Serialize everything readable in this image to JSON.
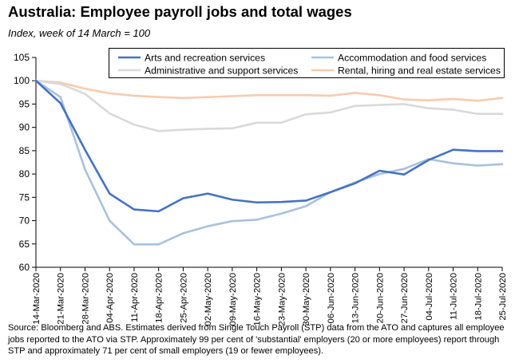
{
  "chart_data": {
    "type": "line",
    "title": "Australia:  Employee payroll jobs and total wages",
    "subtitle": "Index, week of 14 March = 100",
    "xlabel": "",
    "ylabel": "",
    "ylim": [
      60,
      105
    ],
    "yticks": [
      60,
      65,
      70,
      75,
      80,
      85,
      90,
      95,
      100,
      105
    ],
    "grid": false,
    "legend_position": "top-right",
    "categories": [
      "14-Mar-2020",
      "21-Mar-2020",
      "28-Mar-2020",
      "04-Apr-2020",
      "11-Apr-2020",
      "18-Apr-2020",
      "25-Apr-2020",
      "02-May-2020",
      "09-May-2020",
      "16-May-2020",
      "23-May-2020",
      "30-May-2020",
      "06-Jun-2020",
      "13-Jun-2020",
      "20-Jun-2020",
      "27-Jun-2020",
      "04-Jul-2020",
      "11-Jul-2020",
      "18-Jul-2020",
      "25-Jul-2020"
    ],
    "series": [
      {
        "name": "Arts and recreation services",
        "color": "#4472c4",
        "values": [
          100,
          95.2,
          85.2,
          75.8,
          72.4,
          72.0,
          74.8,
          75.8,
          74.5,
          73.9,
          74.0,
          74.3,
          76.1,
          78.0,
          80.7,
          79.9,
          83.0,
          85.2,
          84.9,
          84.9
        ]
      },
      {
        "name": "Accommodation and food services",
        "color": "#a9c1dc",
        "values": [
          100,
          96.5,
          81.0,
          70.0,
          64.9,
          64.9,
          67.3,
          68.8,
          69.9,
          70.2,
          71.5,
          73.1,
          76.1,
          78.2,
          80.0,
          81.1,
          83.2,
          82.3,
          81.8,
          82.1
        ]
      },
      {
        "name": "Administrative and support services",
        "color": "#d9d9d9",
        "values": [
          100,
          99.3,
          97.2,
          93.0,
          90.6,
          89.2,
          89.5,
          89.7,
          89.8,
          91.0,
          91.0,
          92.8,
          93.2,
          94.6,
          94.8,
          95.0,
          94.1,
          93.8,
          92.9,
          92.9
        ]
      },
      {
        "name": "Rental, hiring and real estate services",
        "color": "#f8cbad",
        "values": [
          100,
          99.6,
          98.3,
          97.3,
          96.8,
          96.5,
          96.3,
          96.5,
          96.7,
          96.9,
          96.9,
          96.9,
          96.8,
          97.4,
          96.9,
          96.0,
          95.8,
          96.1,
          95.7,
          96.3
        ]
      }
    ]
  },
  "source_note": "Source: Bloomberg and ABS.  Estimates derived from Single Touch Payroll (STP) data from the ATO and captures all employee jobs reported to the ATO via STP.  Approximately 99 per cent of 'substantial' employers (20 or more employees) report through STP and approximately 71 per cent of small employers (19 or fewer employees)."
}
